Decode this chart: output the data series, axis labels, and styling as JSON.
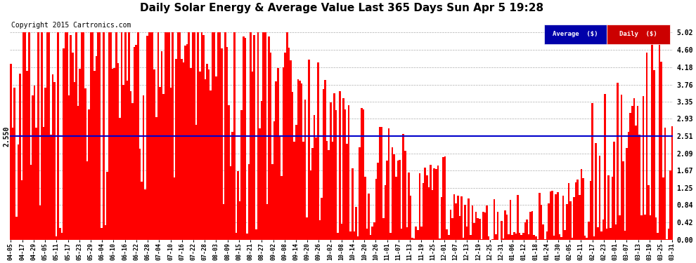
{
  "title": "Daily Solar Energy & Average Value Last 365 Days Sun Apr 5 19:28",
  "copyright": "Copyright 2015 Cartronics.com",
  "average_value": 2.51,
  "ylim": [
    0.0,
    5.44
  ],
  "yticks": [
    0.0,
    0.42,
    0.84,
    1.25,
    1.67,
    2.09,
    2.51,
    2.93,
    3.35,
    3.76,
    4.18,
    4.6,
    5.02
  ],
  "bar_color": "#ff0000",
  "average_line_color": "#0000cc",
  "background_color": "#ffffff",
  "grid_color": "#999999",
  "legend_avg_bg": "#0000aa",
  "legend_daily_bg": "#cc0000",
  "left_label": "2.550",
  "x_labels": [
    "04-05",
    "04-17",
    "04-29",
    "05-05",
    "05-11",
    "05-17",
    "05-23",
    "05-29",
    "06-04",
    "06-10",
    "06-16",
    "06-22",
    "06-28",
    "07-04",
    "07-10",
    "07-16",
    "07-22",
    "07-28",
    "08-03",
    "08-09",
    "08-15",
    "08-21",
    "08-27",
    "09-02",
    "09-08",
    "09-14",
    "09-20",
    "09-26",
    "10-02",
    "10-08",
    "10-14",
    "10-20",
    "10-26",
    "11-01",
    "11-07",
    "11-13",
    "11-19",
    "11-25",
    "12-01",
    "12-07",
    "12-13",
    "12-19",
    "12-25",
    "12-31",
    "01-06",
    "01-12",
    "01-18",
    "01-24",
    "01-30",
    "02-05",
    "02-11",
    "02-17",
    "02-23",
    "03-01",
    "03-07",
    "03-13",
    "03-19",
    "03-25",
    "03-31"
  ],
  "n_bars": 365,
  "seed": 7
}
